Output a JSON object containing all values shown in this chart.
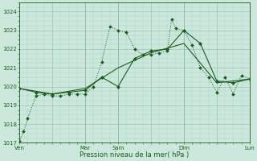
{
  "bg_color": "#cce8dc",
  "grid_color_minor": "#aad4c4",
  "grid_color_major": "#99c4b4",
  "line_color": "#1a5c20",
  "ylabel": "Pression niveau de la mer( hPa )",
  "ylim": [
    1017,
    1024.5
  ],
  "yticks": [
    1017,
    1018,
    1019,
    1020,
    1021,
    1022,
    1023,
    1024
  ],
  "day_labels": [
    "Ven",
    "",
    "Mar",
    "Sam",
    "",
    "Dim",
    "",
    "Lun"
  ],
  "day_positions": [
    0,
    4,
    8,
    12,
    16,
    20,
    24,
    28
  ],
  "vline_positions": [
    0,
    8,
    12,
    20,
    28
  ],
  "xlim": [
    0,
    28
  ],
  "series1_x": [
    0,
    0.5,
    1,
    2,
    3,
    4,
    5,
    6,
    7,
    8,
    9,
    10,
    11,
    12,
    13,
    14,
    15,
    16,
    17,
    18,
    18.5,
    19,
    20,
    21,
    22,
    23,
    24,
    25,
    26,
    27,
    28
  ],
  "series1_y": [
    1017.1,
    1017.6,
    1018.3,
    1019.5,
    1019.6,
    1019.5,
    1019.5,
    1019.6,
    1019.6,
    1019.6,
    1020.0,
    1021.3,
    1023.2,
    1023.0,
    1022.9,
    1022.0,
    1021.7,
    1021.7,
    1021.8,
    1021.9,
    1023.6,
    1023.1,
    1023.0,
    1022.2,
    1021.0,
    1020.5,
    1019.7,
    1020.5,
    1019.6,
    1020.6,
    1020.4
  ],
  "series2_x": [
    0,
    2,
    4,
    6,
    8,
    10,
    12,
    14,
    16,
    18,
    20,
    22,
    24,
    26,
    28
  ],
  "series2_y": [
    1019.9,
    1019.7,
    1019.6,
    1019.7,
    1019.8,
    1020.5,
    1020.0,
    1021.5,
    1021.9,
    1022.0,
    1023.0,
    1022.3,
    1020.3,
    1020.2,
    1020.4
  ],
  "series3_x": [
    0,
    4,
    8,
    12,
    16,
    20,
    24,
    28
  ],
  "series3_y": [
    1019.9,
    1019.6,
    1019.9,
    1021.0,
    1021.8,
    1022.3,
    1020.2,
    1020.4
  ]
}
